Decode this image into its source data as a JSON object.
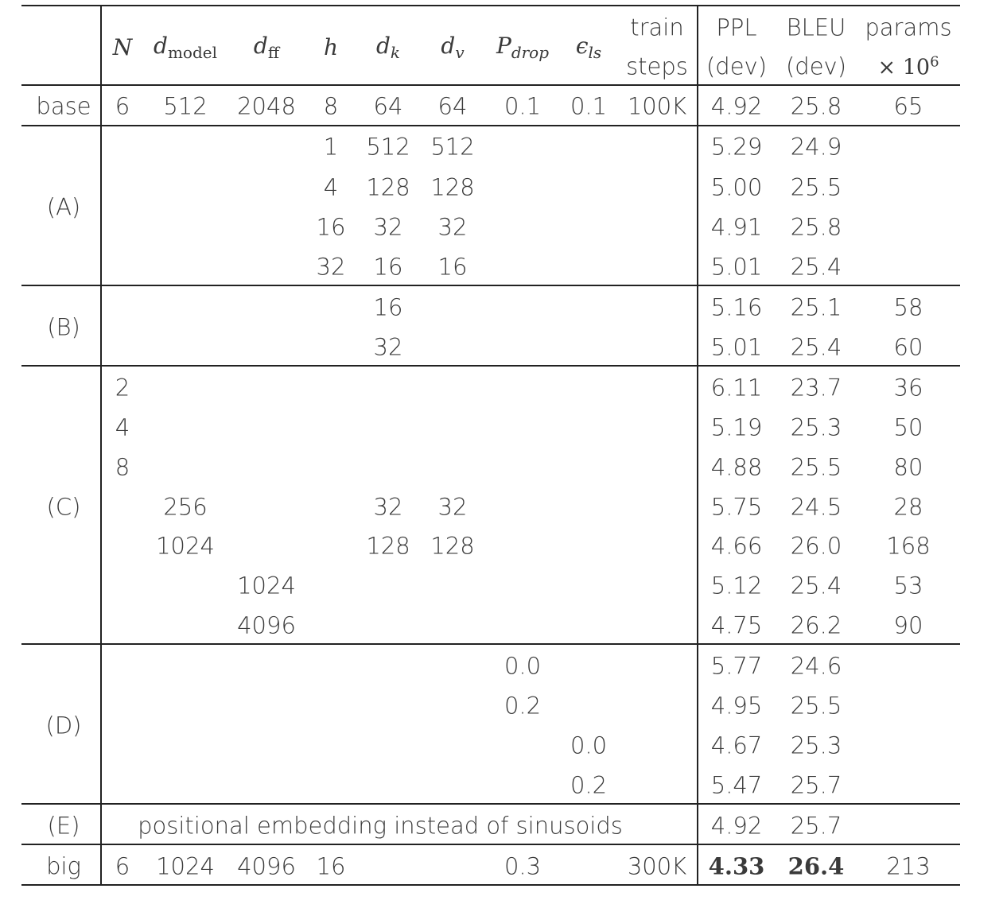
{
  "header": {
    "N": "N",
    "dmodel": {
      "base": "d",
      "sub": "model"
    },
    "dff": {
      "base": "d",
      "sub": "ff"
    },
    "h": "h",
    "dk": {
      "base": "d",
      "sub": "k"
    },
    "dv": {
      "base": "d",
      "sub": "v"
    },
    "pdrop": {
      "base": "P",
      "sub": "drop"
    },
    "els": {
      "base": "ϵ",
      "sub": "ls"
    },
    "train": [
      "train",
      "steps"
    ],
    "ppl": [
      "PPL",
      "(dev)"
    ],
    "bleu": [
      "BLEU",
      "(dev)"
    ],
    "params": {
      "line1": "params",
      "times": "×",
      "base": "10",
      "exp": "6"
    }
  },
  "rows": {
    "base": {
      "label": "base",
      "N": "6",
      "dmodel": "512",
      "dff": "2048",
      "h": "8",
      "dk": "64",
      "dv": "64",
      "pdrop": "0.1",
      "els": "0.1",
      "steps": "100K",
      "ppl": "4.92",
      "bleu": "25.8",
      "params": "65"
    },
    "A": [
      {
        "h": "1",
        "dk": "512",
        "dv": "512",
        "ppl": "5.29",
        "bleu": "24.9"
      },
      {
        "h": "4",
        "dk": "128",
        "dv": "128",
        "ppl": "5.00",
        "bleu": "25.5"
      },
      {
        "h": "16",
        "dk": "32",
        "dv": "32",
        "ppl": "4.91",
        "bleu": "25.8"
      },
      {
        "h": "32",
        "dk": "16",
        "dv": "16",
        "ppl": "5.01",
        "bleu": "25.4"
      }
    ],
    "B": [
      {
        "dk": "16",
        "ppl": "5.16",
        "bleu": "25.1",
        "params": "58"
      },
      {
        "dk": "32",
        "ppl": "5.01",
        "bleu": "25.4",
        "params": "60"
      }
    ],
    "C": [
      {
        "N": "2",
        "ppl": "6.11",
        "bleu": "23.7",
        "params": "36"
      },
      {
        "N": "4",
        "ppl": "5.19",
        "bleu": "25.3",
        "params": "50"
      },
      {
        "N": "8",
        "ppl": "4.88",
        "bleu": "25.5",
        "params": "80"
      },
      {
        "dmodel": "256",
        "dk": "32",
        "dv": "32",
        "ppl": "5.75",
        "bleu": "24.5",
        "params": "28"
      },
      {
        "dmodel": "1024",
        "dk": "128",
        "dv": "128",
        "ppl": "4.66",
        "bleu": "26.0",
        "params": "168"
      },
      {
        "dff": "1024",
        "ppl": "5.12",
        "bleu": "25.4",
        "params": "53"
      },
      {
        "dff": "4096",
        "ppl": "4.75",
        "bleu": "26.2",
        "params": "90"
      }
    ],
    "D": [
      {
        "pdrop": "0.0",
        "ppl": "5.77",
        "bleu": "24.6"
      },
      {
        "pdrop": "0.2",
        "ppl": "4.95",
        "bleu": "25.5"
      },
      {
        "els": "0.0",
        "ppl": "4.67",
        "bleu": "25.3"
      },
      {
        "els": "0.2",
        "ppl": "5.47",
        "bleu": "25.7"
      }
    ],
    "E": {
      "label": "(E)",
      "text": "positional embedding instead of sinusoids",
      "ppl": "4.92",
      "bleu": "25.7"
    },
    "big": {
      "label": "big",
      "N": "6",
      "dmodel": "1024",
      "dff": "4096",
      "h": "16",
      "pdrop": "0.3",
      "steps": "300K",
      "ppl": "4.33",
      "bleu": "26.4",
      "params": "213"
    }
  },
  "group_labels": {
    "A": "(A)",
    "B": "(B)",
    "C": "(C)",
    "D": "(D)"
  }
}
